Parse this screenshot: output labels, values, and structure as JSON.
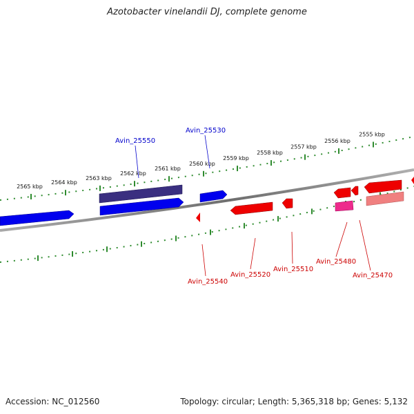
{
  "title": "Azotobacter vinelandii DJ, complete genome",
  "footer": {
    "accession": "Accession: NC_012560",
    "topology": "Topology: circular; Length: 5,365,318 bp; Genes: 5,132"
  },
  "scale": {
    "unit": "kbp",
    "labels": [
      "2565 kbp",
      "2564 kbp",
      "2563 kbp",
      "2562 kbp",
      "2561 kbp",
      "2560 kbp",
      "2559 kbp",
      "2558 kbp",
      "2557 kbp",
      "2556 kbp",
      "2555 kbp"
    ]
  },
  "genes": {
    "top": [
      "Avin_25550",
      "Avin_25530"
    ],
    "bottom": [
      "Avin_25540",
      "Avin_25520",
      "Avin_25510",
      "Avin_25480",
      "Avin_25470"
    ]
  },
  "colors": {
    "forward_strand": "#0000ee",
    "forward_dark": "#3a2f80",
    "reverse_strand": "#ee0000",
    "reverse_pink": "#ee2b8c",
    "reverse_light": "#f08080",
    "backbone": "#7a7a7a",
    "scale_ticks": "#2e8b2e",
    "label_top": "#0000cc",
    "label_bottom": "#cc0000"
  }
}
